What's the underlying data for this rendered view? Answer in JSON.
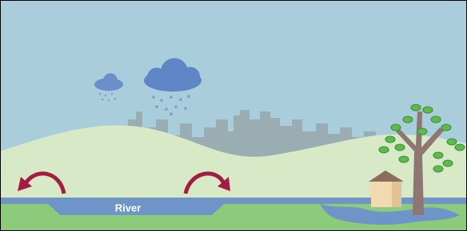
{
  "labels": {
    "river": "River"
  }
}
